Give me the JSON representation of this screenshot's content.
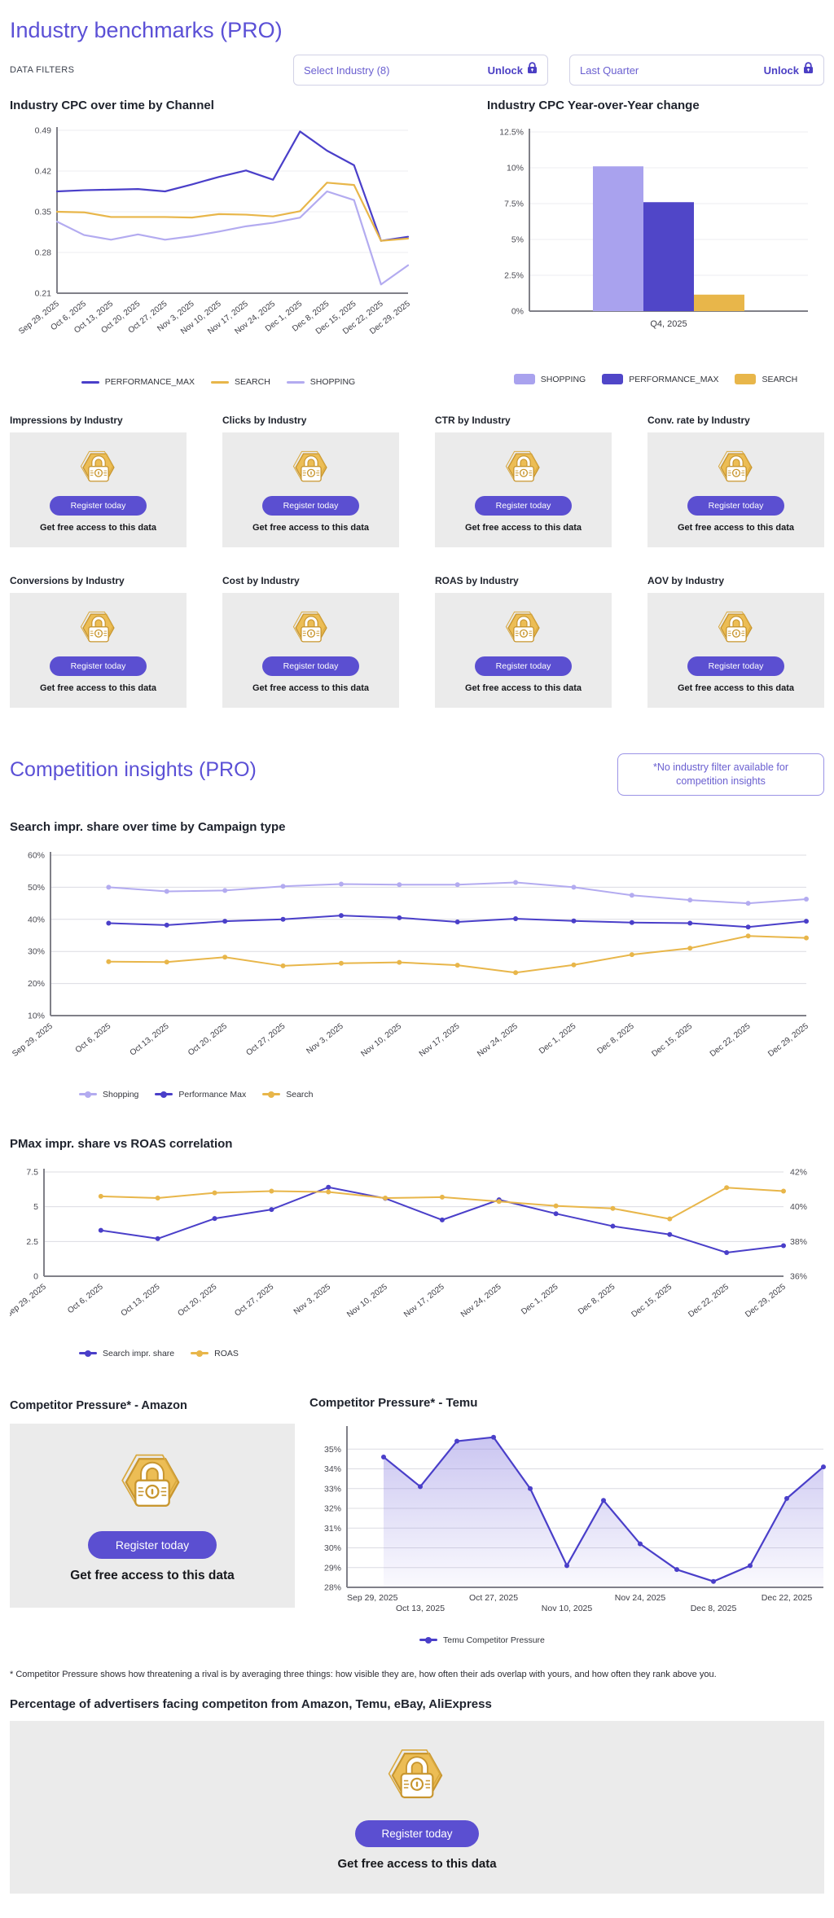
{
  "page": {
    "title": "Industry benchmarks (PRO)"
  },
  "filters": {
    "label": "DATA FILTERS",
    "industry": {
      "label": "Select Industry (8)",
      "action": "Unlock"
    },
    "quarter": {
      "label": "Last Quarter",
      "action": "Unlock"
    }
  },
  "locked": {
    "register": "Register today",
    "caption": "Get free access to this data"
  },
  "locked_cards": {
    "row1": [
      "Impressions by Industry",
      "Clicks by Industry",
      "CTR by Industry",
      "Conv. rate by Industry"
    ],
    "row2": [
      "Conversions by Industry",
      "Cost by Industry",
      "ROAS by Industry",
      "AOV by Industry"
    ]
  },
  "competition": {
    "title": "Competition insights (PRO)",
    "note": "*No industry filter available for competition insights"
  },
  "competitor": {
    "amazon_title": "Competitor Pressure* - Amazon",
    "footnote": "* Competitor Pressure shows how threatening a rival is by averaging three things: how visible they are, how often their ads overlap with yours, and how often they rank above you."
  },
  "bottom": {
    "title": "Percentage of advertisers facing competiton from Amazon, Temu, eBay, AliExpress"
  },
  "colors": {
    "accent": "#5b50d6",
    "indigo": "#4a3fc9",
    "light_purple": "#b3abf0",
    "gold": "#e8b64a",
    "bar_indigo": "#5046c8",
    "bar_light": "#a9a2ee",
    "card_bg": "#ebebeb"
  },
  "chart_data": [
    {
      "id": "industry-cpc-over-time",
      "type": "line",
      "title": "Industry CPC over time by Channel",
      "categories": [
        "Sep 29, 2025",
        "Oct 6, 2025",
        "Oct 13, 2025",
        "Oct 20, 2025",
        "Oct 27, 2025",
        "Nov 3, 2025",
        "Nov 10, 2025",
        "Nov 17, 2025",
        "Nov 24, 2025",
        "Dec 1, 2025",
        "Dec 8, 2025",
        "Dec 15, 2025",
        "Dec 22, 2025",
        "Dec 29, 2025"
      ],
      "series": [
        {
          "name": "PERFORMANCE_MAX",
          "color": "#4a3fc9",
          "values": [
            0.385,
            0.387,
            0.388,
            0.389,
            0.385,
            0.397,
            0.41,
            0.421,
            0.405,
            0.488,
            0.455,
            0.43,
            0.3,
            0.307
          ]
        },
        {
          "name": "SEARCH",
          "color": "#e8b64a",
          "values": [
            0.35,
            0.349,
            0.341,
            0.341,
            0.341,
            0.34,
            0.346,
            0.345,
            0.342,
            0.351,
            0.4,
            0.396,
            0.3,
            0.304
          ]
        },
        {
          "name": "SHOPPING",
          "color": "#b3abf0",
          "values": [
            0.333,
            0.31,
            0.302,
            0.311,
            0.302,
            0.308,
            0.316,
            0.325,
            0.331,
            0.34,
            0.385,
            0.37,
            0.225,
            0.258
          ]
        }
      ],
      "ylim": [
        0.21,
        0.49
      ],
      "yticks": [
        0.49,
        0.42,
        0.35,
        0.28,
        0.21
      ],
      "ytick_suffix": "",
      "markers": false,
      "grid": true,
      "legend_position": "bottom-center"
    },
    {
      "id": "industry-cpc-yoy",
      "type": "bar",
      "title": "Industry CPC Year-over-Year change",
      "categories": [
        "Q4, 2025"
      ],
      "series": [
        {
          "name": "SHOPPING",
          "color": "#a9a2ee",
          "values": [
            10.1
          ]
        },
        {
          "name": "PERFORMANCE_MAX",
          "color": "#5046c8",
          "values": [
            7.6
          ]
        },
        {
          "name": "SEARCH",
          "color": "#e8b64a",
          "values": [
            1.15
          ]
        }
      ],
      "ylim": [
        0,
        12.5
      ],
      "yticks": [
        0,
        2.5,
        5,
        7.5,
        10,
        12.5
      ],
      "ytick_suffix": "%",
      "grid": true,
      "legend_position": "bottom-center"
    },
    {
      "id": "search-impr-share-by-campaign",
      "type": "line",
      "title": "Search impr. share over time by Campaign type",
      "categories": [
        "Sep 29, 2025",
        "Oct 6, 2025",
        "Oct 13, 2025",
        "Oct 20, 2025",
        "Oct 27, 2025",
        "Nov 3, 2025",
        "Nov 10, 2025",
        "Nov 17, 2025",
        "Nov 24, 2025",
        "Dec 1, 2025",
        "Dec 8, 2025",
        "Dec 15, 2025",
        "Dec 22, 2025",
        "Dec 29, 2025"
      ],
      "series": [
        {
          "name": "Shopping",
          "color": "#b3abf0",
          "values": [
            null,
            50,
            48.7,
            49,
            50.3,
            51,
            50.8,
            50.8,
            51.5,
            50,
            47.5,
            46,
            45,
            46.3
          ]
        },
        {
          "name": "Performance Max",
          "color": "#4a3fc9",
          "values": [
            null,
            38.8,
            38.2,
            39.4,
            40,
            41.2,
            40.5,
            39.2,
            40.2,
            39.5,
            39,
            38.8,
            37.6,
            39.4
          ]
        },
        {
          "name": "Search",
          "color": "#e8b64a",
          "values": [
            null,
            26.8,
            26.7,
            28.2,
            25.5,
            26.3,
            26.6,
            25.7,
            23.4,
            25.8,
            29,
            31,
            34.8,
            34.2
          ]
        }
      ],
      "ylim": [
        10,
        60
      ],
      "yticks": [
        60,
        50,
        40,
        30,
        20,
        10
      ],
      "ytick_suffix": "%",
      "markers": true,
      "grid": true,
      "legend_position": "bottom-left"
    },
    {
      "id": "pmax-impr-share-vs-roas",
      "type": "line",
      "title": "PMax impr. share vs ROAS correlation",
      "categories": [
        "Sep 29, 2025",
        "Oct 6, 2025",
        "Oct 13, 2025",
        "Oct 20, 2025",
        "Oct 27, 2025",
        "Nov 3, 2025",
        "Nov 10, 2025",
        "Nov 17, 2025",
        "Nov 24, 2025",
        "Dec 1, 2025",
        "Dec 8, 2025",
        "Dec 15, 2025",
        "Dec 22, 2025",
        "Dec 29, 2025"
      ],
      "series": [
        {
          "name": "Search impr. share",
          "color": "#4a3fc9",
          "values": [
            null,
            3.3,
            2.7,
            4.15,
            4.8,
            6.4,
            5.6,
            4.05,
            5.5,
            4.5,
            3.6,
            3,
            1.7,
            2.2
          ]
        },
        {
          "name": "ROAS",
          "color": "#e8b64a",
          "axis": "right",
          "values": [
            null,
            40.6,
            40.5,
            40.8,
            40.9,
            40.85,
            40.5,
            40.55,
            40.3,
            40.05,
            39.9,
            39.3,
            41.1,
            40.9
          ]
        }
      ],
      "ylim": [
        0,
        7.5
      ],
      "yticks": [
        7.5,
        5,
        2.5,
        0
      ],
      "ytick_suffix": "",
      "y2lim": [
        36,
        42
      ],
      "y2ticks": [
        42,
        40,
        38,
        36
      ],
      "y2tick_suffix": "%",
      "markers": true,
      "grid": true,
      "legend_position": "bottom-left"
    },
    {
      "id": "temu-competitor-pressure",
      "type": "area",
      "title": "Competitor Pressure* - Temu",
      "categories": [
        "Sep 29, 2025",
        "Oct 6, 2025",
        "Oct 13, 2025",
        "Oct 20, 2025",
        "Oct 27, 2025",
        "Nov 3, 2025",
        "Nov 10, 2025",
        "Nov 17, 2025",
        "Nov 24, 2025",
        "Dec 1, 2025",
        "Dec 8, 2025",
        "Dec 15, 2025",
        "Dec 22, 2025",
        "Dec 29, 2025"
      ],
      "series": [
        {
          "name": "Temu Competitor Pressure",
          "color": "#4a3fc9",
          "area": true,
          "values": [
            null,
            34.6,
            33.1,
            35.4,
            35.6,
            33,
            29.1,
            32.4,
            30.2,
            28.9,
            28.3,
            29.1,
            32.5,
            34.1
          ]
        }
      ],
      "ylim": [
        28,
        36
      ],
      "yticks": [
        35,
        34,
        33,
        32,
        31,
        30,
        29,
        28
      ],
      "ytick_suffix": "%",
      "markers": true,
      "grid": true,
      "x_labels_shown": [
        "Sep 29, 2025",
        "Oct 13, 2025",
        "Oct 27, 2025",
        "Nov 10, 2025",
        "Nov 24, 2025",
        "Dec 8, 2025",
        "Dec 22, 2025"
      ],
      "legend_position": "bottom-left"
    }
  ]
}
